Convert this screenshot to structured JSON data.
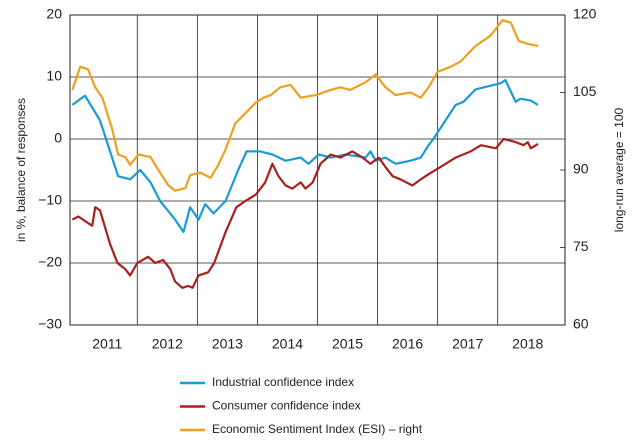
{
  "chart_data": {
    "type": "line",
    "y_label": "in %, balance of responses",
    "y2_label": "long-run average = 100",
    "xlim": [
      2010.88,
      2019.12
    ],
    "xticks": [
      2011,
      2012,
      2013,
      2014,
      2015,
      2016,
      2017,
      2018
    ],
    "ylim": [
      -30,
      20
    ],
    "yticks": [
      20,
      10,
      0,
      {
        "value": -10,
        "label": "−10"
      },
      {
        "value": -20,
        "label": "−20"
      },
      {
        "value": -30,
        "label": "−30"
      }
    ],
    "y2lim": [
      60,
      120
    ],
    "y2ticks": [
      120,
      105,
      90,
      75,
      60
    ],
    "grid": true,
    "legend": "bottom",
    "series": [
      {
        "name": "Industrial confidence index",
        "color": "#1a9bd7",
        "x": [
          2010.92,
          2011.13,
          2011.38,
          2011.68,
          2011.88,
          2012.05,
          2012.22,
          2012.38,
          2012.63,
          2012.77,
          2012.88,
          2013.02,
          2013.13,
          2013.27,
          2013.47,
          2013.68,
          2013.82,
          2014.05,
          2014.25,
          2014.47,
          2014.72,
          2014.85,
          2015.02,
          2015.22,
          2015.47,
          2015.8,
          2015.88,
          2015.97,
          2016.13,
          2016.3,
          2016.55,
          2016.72,
          2016.85,
          2016.93,
          2017.13,
          2017.3,
          2017.43,
          2017.63,
          2018.05,
          2018.13,
          2018.25,
          2018.3,
          2018.38,
          2018.55,
          2018.67
        ],
        "values": [
          5.5,
          7,
          3,
          -6,
          -6.5,
          -5,
          -7,
          -10,
          -13,
          -15,
          -11,
          -13,
          -10.5,
          -12,
          -10,
          -5,
          -2,
          -2,
          -2.5,
          -3.5,
          -3,
          -4,
          -2.5,
          -3,
          -2.5,
          -3,
          -2,
          -3.5,
          -3,
          -4,
          -3.5,
          -3,
          -1,
          0,
          3,
          5.5,
          6,
          8,
          9,
          9.5,
          7,
          6,
          6.5,
          6.2,
          5.5
        ]
      },
      {
        "name": "Consumer confidence index",
        "color": "#a8201f",
        "x": [
          2010.92,
          2011.02,
          2011.25,
          2011.3,
          2011.38,
          2011.55,
          2011.67,
          2011.8,
          2011.88,
          2012.0,
          2012.18,
          2012.3,
          2012.43,
          2012.55,
          2012.63,
          2012.75,
          2012.85,
          2012.92,
          2013.02,
          2013.18,
          2013.28,
          2013.47,
          2013.65,
          2013.8,
          2013.97,
          2014.13,
          2014.25,
          2014.35,
          2014.47,
          2014.58,
          2014.72,
          2014.8,
          2014.92,
          2015.05,
          2015.22,
          2015.38,
          2015.58,
          2015.75,
          2015.88,
          2016.02,
          2016.13,
          2016.25,
          2016.38,
          2016.58,
          2016.72,
          2016.88,
          2017.05,
          2017.3,
          2017.55,
          2017.72,
          2017.97,
          2018.1,
          2018.3,
          2018.43,
          2018.5,
          2018.55,
          2018.67
        ],
        "values": [
          -13,
          -12.5,
          -14,
          -11,
          -11.5,
          -17,
          -20,
          -21,
          -22,
          -20,
          -19,
          -20,
          -19.5,
          -21,
          -23,
          -24,
          -23.7,
          -24,
          -22,
          -21.5,
          -20,
          -15,
          -11,
          -10,
          -9,
          -7,
          -4,
          -6,
          -7.5,
          -8,
          -7,
          -8,
          -7,
          -4,
          -2.5,
          -3,
          -2,
          -3,
          -4,
          -3,
          -4.5,
          -6,
          -6.5,
          -7.5,
          -6.5,
          -5.5,
          -4.5,
          -3,
          -2,
          -1,
          -1.5,
          0,
          -0.5,
          -1,
          -0.5,
          -1.5,
          -0.8
        ]
      },
      {
        "name": "Economic Sentiment Index (ESI) – right",
        "color": "#f0a020",
        "axis": "y2",
        "x": [
          2010.92,
          2011.05,
          2011.18,
          2011.3,
          2011.42,
          2011.58,
          2011.68,
          2011.8,
          2011.88,
          2012.02,
          2012.22,
          2012.35,
          2012.52,
          2012.63,
          2012.8,
          2012.88,
          2013.05,
          2013.22,
          2013.35,
          2013.47,
          2013.63,
          2013.8,
          2013.97,
          2014.1,
          2014.22,
          2014.38,
          2014.55,
          2014.72,
          2014.97,
          2015.22,
          2015.38,
          2015.55,
          2015.8,
          2015.97,
          2016.13,
          2016.3,
          2016.55,
          2016.72,
          2016.85,
          2017.0,
          2017.22,
          2017.38,
          2017.63,
          2017.88,
          2018.08,
          2018.22,
          2018.35,
          2018.47,
          2018.67
        ],
        "values": [
          105.5,
          110,
          109.5,
          106,
          104,
          98,
          93,
          92.5,
          91,
          93,
          92.5,
          90,
          87,
          86,
          86.5,
          89,
          89.5,
          88.5,
          91,
          94,
          99,
          101,
          103,
          104,
          104.5,
          106,
          106.5,
          104,
          104.5,
          105.5,
          106,
          105.5,
          107,
          108.5,
          106,
          104.5,
          105,
          104,
          106,
          109,
          110,
          111,
          114,
          116,
          119,
          118.5,
          115,
          114.5,
          114
        ]
      }
    ]
  }
}
